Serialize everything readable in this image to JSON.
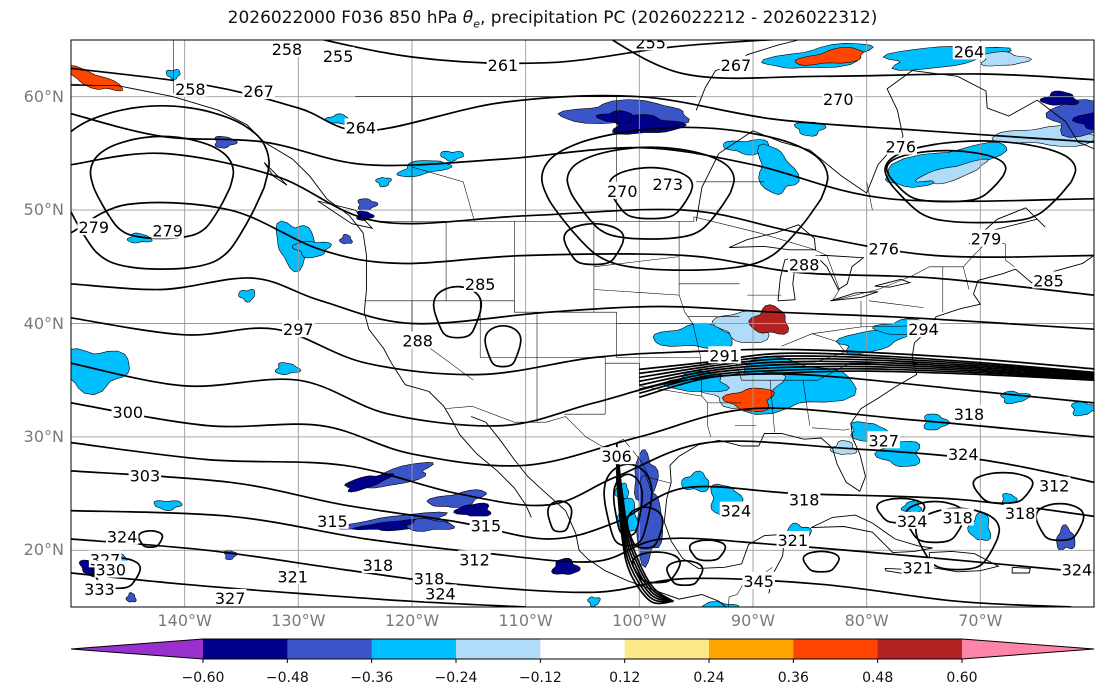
{
  "title_parts": {
    "before": "2026022000 F036 850 hPa ",
    "theta": "θ",
    "sub": "e",
    "after": ", precipitation PC (2026022212 - 2026022312)"
  },
  "map": {
    "lon_range": [
      -150,
      -60
    ],
    "lat_range": [
      15,
      65
    ],
    "lat_labels": [
      "60°N",
      "50°N",
      "40°N",
      "30°N",
      "20°N"
    ],
    "lon_labels": [
      "140°W",
      "130°W",
      "120°W",
      "110°W",
      "100°W",
      "90°W",
      "80°W",
      "70°W"
    ],
    "gridlines": true
  },
  "colorbar": {
    "tick_labels": [
      "−0.60",
      "−0.48",
      "−0.36",
      "−0.24",
      "−0.12",
      "0.12",
      "0.24",
      "0.36",
      "0.48",
      "0.60"
    ],
    "colors": [
      "#9932cc",
      "#00008b",
      "#3a55c8",
      "#00bfff",
      "#b0dcfa",
      "#ffffff",
      "#fde98a",
      "#ffa500",
      "#ff4500",
      "#b22222",
      "#ff85a8"
    ]
  },
  "contour_labels": [
    {
      "text": "258",
      "lon": -131,
      "lat": 64.2
    },
    {
      "text": "255",
      "lon": -126.5,
      "lat": 63.6
    },
    {
      "text": "255",
      "lon": -99,
      "lat": 64.8
    },
    {
      "text": "261",
      "lon": -112,
      "lat": 62.8
    },
    {
      "text": "267",
      "lon": -91.5,
      "lat": 62.8
    },
    {
      "text": "264",
      "lon": -71,
      "lat": 64
    },
    {
      "text": "258",
      "lon": -139.5,
      "lat": 60.7
    },
    {
      "text": "267",
      "lon": -133.5,
      "lat": 60.5
    },
    {
      "text": "270",
      "lon": -82.5,
      "lat": 59.8
    },
    {
      "text": "264",
      "lon": -124.5,
      "lat": 57.3
    },
    {
      "text": "276",
      "lon": -77,
      "lat": 55.6
    },
    {
      "text": "270",
      "lon": -101.5,
      "lat": 51.7
    },
    {
      "text": "273",
      "lon": -97.5,
      "lat": 52.3
    },
    {
      "text": "279",
      "lon": -148,
      "lat": 48.5
    },
    {
      "text": "279",
      "lon": -141.5,
      "lat": 48.2
    },
    {
      "text": "276",
      "lon": -78.5,
      "lat": 46.6
    },
    {
      "text": "279",
      "lon": -69.5,
      "lat": 47.5
    },
    {
      "text": "288",
      "lon": -85.5,
      "lat": 45.2
    },
    {
      "text": "285",
      "lon": -64,
      "lat": 43.8
    },
    {
      "text": "285",
      "lon": -114,
      "lat": 43.5
    },
    {
      "text": "297",
      "lon": -130,
      "lat": 39.5
    },
    {
      "text": "288",
      "lon": -119.5,
      "lat": 38.5
    },
    {
      "text": "294",
      "lon": -75,
      "lat": 39.5
    },
    {
      "text": "291",
      "lon": -92.5,
      "lat": 37.2
    },
    {
      "text": "300",
      "lon": -145,
      "lat": 32.2
    },
    {
      "text": "318",
      "lon": -71,
      "lat": 32
    },
    {
      "text": "327",
      "lon": -78.5,
      "lat": 29.7
    },
    {
      "text": "324",
      "lon": -71.5,
      "lat": 28.5
    },
    {
      "text": "306",
      "lon": -102,
      "lat": 28.3
    },
    {
      "text": "303",
      "lon": -143.5,
      "lat": 26.6
    },
    {
      "text": "312",
      "lon": -63.5,
      "lat": 25.7
    },
    {
      "text": "318",
      "lon": -66.5,
      "lat": 23.3
    },
    {
      "text": "324",
      "lon": -91.5,
      "lat": 23.5
    },
    {
      "text": "318",
      "lon": -85.5,
      "lat": 24.5
    },
    {
      "text": "315",
      "lon": -127,
      "lat": 22.6
    },
    {
      "text": "315",
      "lon": -113.5,
      "lat": 22.2
    },
    {
      "text": "324",
      "lon": -76,
      "lat": 22.6
    },
    {
      "text": "318",
      "lon": -72,
      "lat": 22.9
    },
    {
      "text": "324",
      "lon": -145.5,
      "lat": 21.2
    },
    {
      "text": "321",
      "lon": -86.5,
      "lat": 20.9
    },
    {
      "text": "312",
      "lon": -114.5,
      "lat": 19.2
    },
    {
      "text": "318",
      "lon": -123,
      "lat": 18.7
    },
    {
      "text": "327",
      "lon": -147,
      "lat": 19.2
    },
    {
      "text": "330",
      "lon": -146.5,
      "lat": 18.3
    },
    {
      "text": "321",
      "lon": -75.5,
      "lat": 18.5
    },
    {
      "text": "321",
      "lon": -130.5,
      "lat": 17.7
    },
    {
      "text": "318",
      "lon": -118.5,
      "lat": 17.5
    },
    {
      "text": "333",
      "lon": -147.5,
      "lat": 16.6
    },
    {
      "text": "324",
      "lon": -117.5,
      "lat": 16.2
    },
    {
      "text": "327",
      "lon": -136,
      "lat": 15.8
    },
    {
      "text": "345",
      "lon": -89.5,
      "lat": 17.3
    },
    {
      "text": "324",
      "lon": -61.5,
      "lat": 18.3
    }
  ]
}
